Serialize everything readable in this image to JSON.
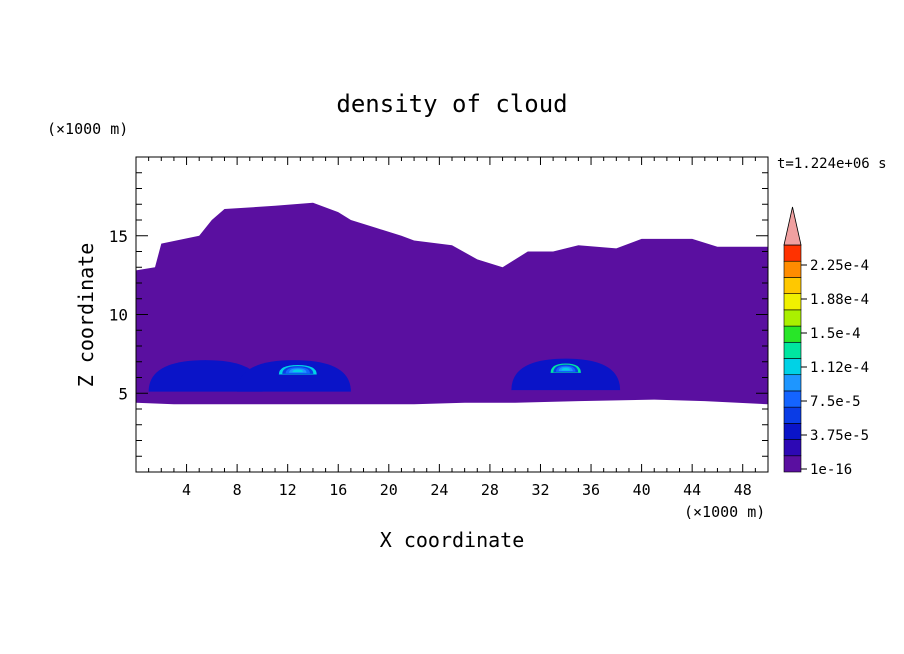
{
  "chart_data": {
    "type": "heatmap",
    "title": "density of cloud",
    "xlabel": "X coordinate",
    "ylabel": "Z coordinate",
    "x_unit": "(×1000 m)",
    "y_unit": "(×1000 m)",
    "time_label": "t=1.224e+06 s",
    "xlim": [
      0,
      50
    ],
    "ylim": [
      0,
      20
    ],
    "x_ticks": [
      "4",
      "8",
      "12",
      "16",
      "20",
      "24",
      "28",
      "32",
      "36",
      "40",
      "44",
      "48"
    ],
    "y_ticks": [
      "5",
      "10",
      "15"
    ],
    "colorbar": {
      "tick_labels": [
        "2.25e-4",
        "1.88e-4",
        "1.5e-4",
        "1.12e-4",
        "7.5e-5",
        "3.75e-5",
        "1e-16"
      ],
      "levels": [
        1e-16,
        1.875e-05,
        3.75e-05,
        5.625e-05,
        7.5e-05,
        9.375e-05,
        0.0001125,
        0.00013125,
        0.00015,
        0.00016875,
        0.0001875,
        0.00020625,
        0.000225,
        0.00024375
      ],
      "colors": [
        "#5a0fa0",
        "#2d08b4",
        "#0a14c8",
        "#0a3ce6",
        "#1464ff",
        "#1e96ff",
        "#00d2e6",
        "#00e6a0",
        "#28e628",
        "#aaf000",
        "#f0f000",
        "#ffc800",
        "#ff8c00",
        "#ff3200",
        "#f0a0a0"
      ]
    },
    "regions": [
      {
        "level": 0,
        "x": [
          0,
          50
        ],
        "upper_boundary": [
          [
            0,
            12.8
          ],
          [
            1.5,
            13
          ],
          [
            2,
            14.5
          ],
          [
            5,
            15
          ],
          [
            6,
            16
          ],
          [
            7,
            16.7
          ],
          [
            11,
            16.9
          ],
          [
            14,
            17.1
          ],
          [
            16,
            16.5
          ],
          [
            17,
            16
          ],
          [
            19,
            15.5
          ],
          [
            21,
            15
          ],
          [
            22,
            14.7
          ],
          [
            25,
            14.4
          ],
          [
            27,
            13.5
          ],
          [
            29,
            13
          ],
          [
            31,
            14
          ],
          [
            33,
            14
          ],
          [
            35,
            14.4
          ],
          [
            38,
            14.2
          ],
          [
            40,
            14.8
          ],
          [
            44,
            14.8
          ],
          [
            46,
            14.3
          ],
          [
            50,
            14.3
          ]
        ],
        "lower_boundary": [
          [
            0,
            4.4
          ],
          [
            3,
            4.3
          ],
          [
            10,
            4.3
          ],
          [
            17,
            4.3
          ],
          [
            22,
            4.3
          ],
          [
            26,
            4.4
          ],
          [
            30,
            4.4
          ],
          [
            35,
            4.5
          ],
          [
            41,
            4.6
          ],
          [
            45,
            4.5
          ],
          [
            50,
            4.3
          ]
        ]
      },
      {
        "level": 2,
        "x_center": 5.5,
        "z_center": 5.8,
        "half_width": 4.5,
        "height": 2
      },
      {
        "level": 2,
        "x_center": 12.5,
        "z_center": 5.8,
        "half_width": 4.5,
        "height": 2
      },
      {
        "level": 2,
        "x_center": 34.0,
        "z_center": 5.9,
        "half_width": 4.3,
        "height": 2
      },
      {
        "level": 6,
        "x_center": 12.8,
        "z_center": 6.4,
        "half_width": 1.5,
        "height": 0.6
      },
      {
        "level": 7,
        "x_center": 34.0,
        "z_center": 6.5,
        "half_width": 1.2,
        "height": 0.6
      }
    ]
  }
}
